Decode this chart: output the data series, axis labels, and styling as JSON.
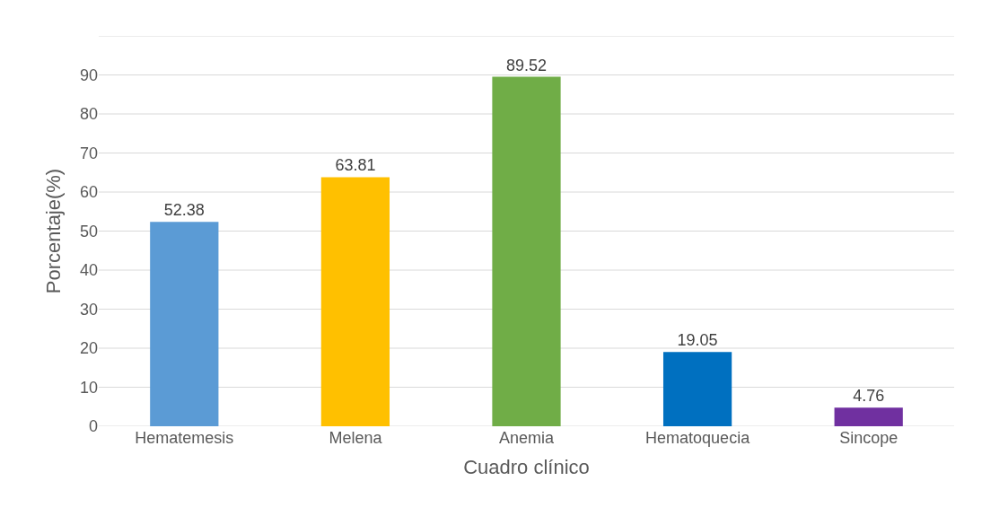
{
  "chart_data": {
    "type": "bar",
    "xlabel": "Cuadro clínico",
    "ylabel": "Porcentaje(%)",
    "categories": [
      "Hematemesis",
      "Melena",
      "Anemia",
      "Hematoquecia",
      "Sincope"
    ],
    "values": [
      52.38,
      63.81,
      89.52,
      19.05,
      4.76
    ],
    "colors": [
      "#5b9bd5",
      "#ffc000",
      "#70ad47",
      "#0070c0",
      "#7030a0"
    ],
    "ylim": [
      0,
      100
    ],
    "yticks": [
      0,
      10,
      20,
      30,
      40,
      50,
      60,
      70,
      80,
      90,
      {
        "value": 100,
        "label": null
      }
    ],
    "grid": "y",
    "data_labels": true
  }
}
